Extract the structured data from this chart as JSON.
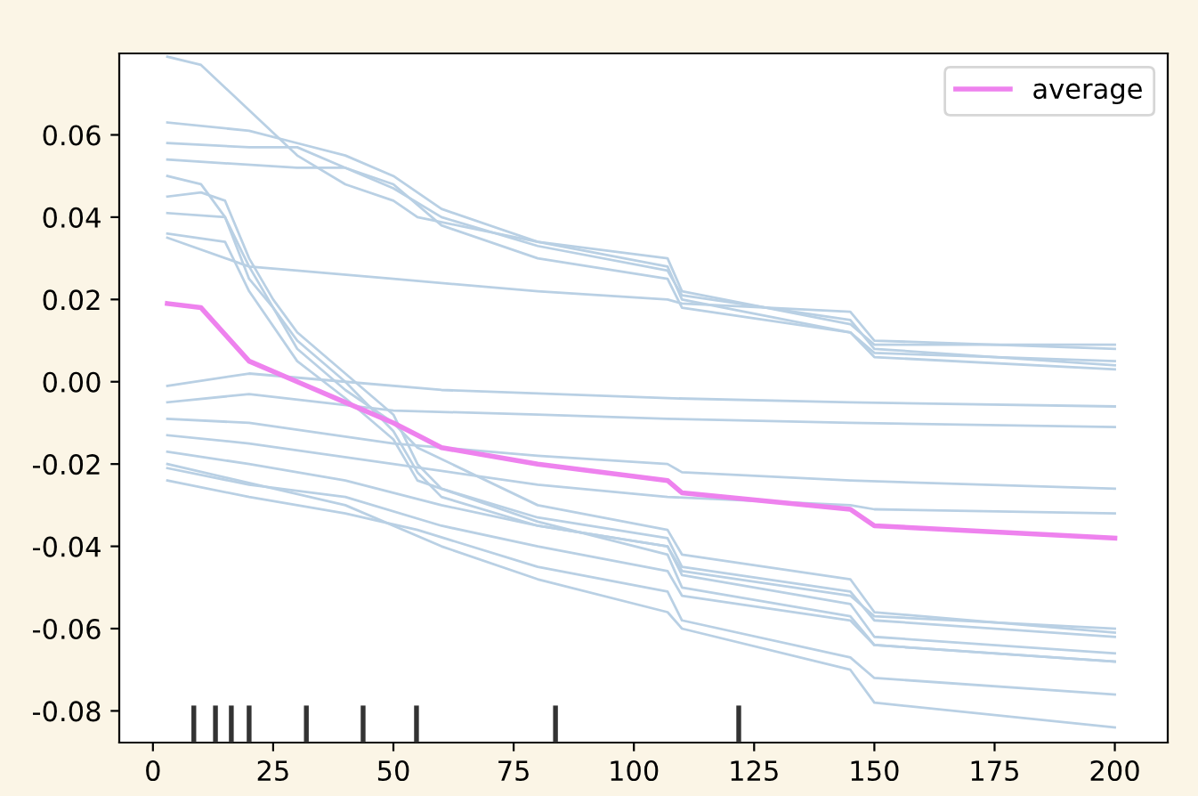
{
  "chart_data": {
    "type": "line",
    "xlim": [
      -7,
      211
    ],
    "ylim": [
      -0.0877,
      0.0798
    ],
    "xticks": [
      0,
      25,
      50,
      75,
      100,
      125,
      150,
      175,
      200
    ],
    "yticks": [
      {
        "value": -0.08,
        "label": "-0.08"
      },
      {
        "value": -0.06,
        "label": "-0.06"
      },
      {
        "value": -0.04,
        "label": "-0.04"
      },
      {
        "value": -0.02,
        "label": "-0.02"
      },
      {
        "value": 0,
        "label": "0.00"
      },
      {
        "value": 0.02,
        "label": "0.02"
      },
      {
        "value": 0.04,
        "label": "0.04"
      },
      {
        "value": 0.06,
        "label": "0.06"
      }
    ],
    "legend": "top right",
    "grid": false,
    "series": [
      {
        "color": "#b9d0e4",
        "x": [
          3,
          10,
          20,
          30,
          40,
          50,
          55,
          80,
          107,
          110,
          145,
          150,
          200
        ],
        "values": [
          0.079,
          0.077,
          0.066,
          0.055,
          0.048,
          0.044,
          0.04,
          0.034,
          0.028,
          0.02,
          0.012,
          0.007,
          0.005
        ]
      },
      {
        "color": "#b9d0e4",
        "x": [
          3,
          20,
          30,
          40,
          50,
          60,
          80,
          107,
          110,
          145,
          150,
          200
        ],
        "values": [
          0.063,
          0.061,
          0.058,
          0.055,
          0.05,
          0.042,
          0.034,
          0.03,
          0.022,
          0.014,
          0.009,
          0.009
        ]
      },
      {
        "color": "#b9d0e4",
        "x": [
          3,
          20,
          30,
          40,
          50,
          60,
          80,
          107,
          110,
          145,
          150,
          200
        ],
        "values": [
          0.058,
          0.057,
          0.057,
          0.052,
          0.047,
          0.04,
          0.033,
          0.027,
          0.021,
          0.015,
          0.008,
          0.004
        ]
      },
      {
        "color": "#b9d0e4",
        "x": [
          3,
          30,
          40,
          50,
          60,
          80,
          107,
          110,
          145,
          150,
          200
        ],
        "values": [
          0.054,
          0.052,
          0.052,
          0.048,
          0.038,
          0.03,
          0.025,
          0.018,
          0.012,
          0.006,
          0.003
        ]
      },
      {
        "color": "#b9d0e4",
        "x": [
          3,
          20,
          30,
          50,
          80,
          107,
          110,
          145,
          150,
          200
        ],
        "values": [
          0.035,
          0.028,
          0.027,
          0.025,
          0.022,
          0.02,
          0.019,
          0.017,
          0.01,
          0.008
        ]
      },
      {
        "color": "#b9d0e4",
        "x": [
          3,
          10,
          15,
          20,
          25,
          30,
          40,
          50,
          55,
          60,
          80,
          107,
          110,
          145,
          150,
          200
        ],
        "values": [
          0.05,
          0.048,
          0.04,
          0.025,
          0.018,
          0.01,
          0.0,
          -0.012,
          -0.022,
          -0.028,
          -0.035,
          -0.04,
          -0.047,
          -0.054,
          -0.062,
          -0.066
        ]
      },
      {
        "color": "#b9d0e4",
        "x": [
          3,
          10,
          15,
          20,
          25,
          30,
          40,
          50,
          55,
          60,
          80,
          107,
          110,
          145,
          150,
          200
        ],
        "values": [
          0.045,
          0.046,
          0.044,
          0.03,
          0.02,
          0.012,
          0.002,
          -0.008,
          -0.02,
          -0.026,
          -0.033,
          -0.038,
          -0.045,
          -0.051,
          -0.058,
          -0.062
        ]
      },
      {
        "color": "#b9d0e4",
        "x": [
          3,
          15,
          20,
          30,
          40,
          50,
          55,
          80,
          107,
          110,
          145,
          150,
          200
        ],
        "values": [
          0.041,
          0.04,
          0.028,
          0.008,
          -0.002,
          -0.01,
          -0.016,
          -0.03,
          -0.036,
          -0.042,
          -0.048,
          -0.056,
          -0.061
        ]
      },
      {
        "color": "#b9d0e4",
        "x": [
          3,
          15,
          20,
          30,
          40,
          50,
          55,
          80,
          107,
          110,
          145,
          150,
          200
        ],
        "values": [
          0.036,
          0.034,
          0.022,
          0.005,
          -0.004,
          -0.014,
          -0.024,
          -0.034,
          -0.042,
          -0.05,
          -0.057,
          -0.064,
          -0.068
        ]
      },
      {
        "color": "#b9d0e4",
        "x": [
          3,
          20,
          40,
          60,
          107,
          145,
          200
        ],
        "values": [
          -0.001,
          0.002,
          0.0,
          -0.002,
          -0.004,
          -0.005,
          -0.006
        ]
      },
      {
        "color": "#b9d0e4",
        "x": [
          3,
          20,
          50,
          80,
          107,
          145,
          200
        ],
        "values": [
          -0.005,
          -0.003,
          -0.007,
          -0.008,
          -0.009,
          -0.01,
          -0.011
        ]
      },
      {
        "color": "#b9d0e4",
        "x": [
          3,
          20,
          50,
          80,
          107,
          110,
          145,
          200
        ],
        "values": [
          -0.009,
          -0.01,
          -0.015,
          -0.018,
          -0.02,
          -0.022,
          -0.024,
          -0.026
        ]
      },
      {
        "color": "#b9d0e4",
        "x": [
          3,
          20,
          50,
          80,
          107,
          145,
          150,
          200
        ],
        "values": [
          -0.013,
          -0.015,
          -0.02,
          -0.025,
          -0.028,
          -0.03,
          -0.031,
          -0.032
        ]
      },
      {
        "color": "#b9d0e4",
        "x": [
          3,
          20,
          40,
          60,
          80,
          107,
          110,
          145,
          150,
          200
        ],
        "values": [
          -0.017,
          -0.02,
          -0.024,
          -0.03,
          -0.035,
          -0.04,
          -0.046,
          -0.052,
          -0.057,
          -0.06
        ]
      },
      {
        "color": "#b9d0e4",
        "x": [
          3,
          20,
          40,
          60,
          80,
          107,
          110,
          145,
          150,
          200
        ],
        "values": [
          -0.021,
          -0.025,
          -0.028,
          -0.035,
          -0.04,
          -0.046,
          -0.052,
          -0.058,
          -0.064,
          -0.068
        ]
      },
      {
        "color": "#b9d0e4",
        "x": [
          3,
          20,
          40,
          55,
          80,
          107,
          110,
          145,
          150,
          200
        ],
        "values": [
          -0.024,
          -0.028,
          -0.032,
          -0.036,
          -0.045,
          -0.051,
          -0.058,
          -0.067,
          -0.072,
          -0.076
        ]
      },
      {
        "color": "#b9d0e4",
        "x": [
          3,
          40,
          60,
          80,
          107,
          110,
          145,
          150,
          200
        ],
        "values": [
          -0.02,
          -0.03,
          -0.04,
          -0.048,
          -0.056,
          -0.06,
          -0.07,
          -0.078,
          -0.084
        ]
      },
      {
        "name": "average",
        "color": "#ee82ee",
        "x": [
          3,
          10,
          20,
          30,
          40,
          50,
          55,
          60,
          80,
          107,
          110,
          145,
          150,
          200
        ],
        "values": [
          0.019,
          0.018,
          0.005,
          0.0,
          -0.005,
          -0.01,
          -0.013,
          -0.016,
          -0.02,
          -0.024,
          -0.027,
          -0.031,
          -0.035,
          -0.038
        ]
      },
      {
        "type": "bar",
        "color": "#333333",
        "x": [
          8.5,
          13,
          16.3,
          20,
          31.9,
          43.7,
          54.8,
          83.7,
          121.8
        ],
        "base": [
          -0.0877,
          -0.0877,
          -0.0877,
          -0.0877,
          -0.0877,
          -0.0877,
          -0.0877,
          -0.0877,
          -0.0877
        ],
        "values": [
          0.009,
          0.009,
          0.009,
          0.009,
          0.009,
          0.009,
          0.009,
          0.009,
          0.009
        ]
      }
    ]
  }
}
